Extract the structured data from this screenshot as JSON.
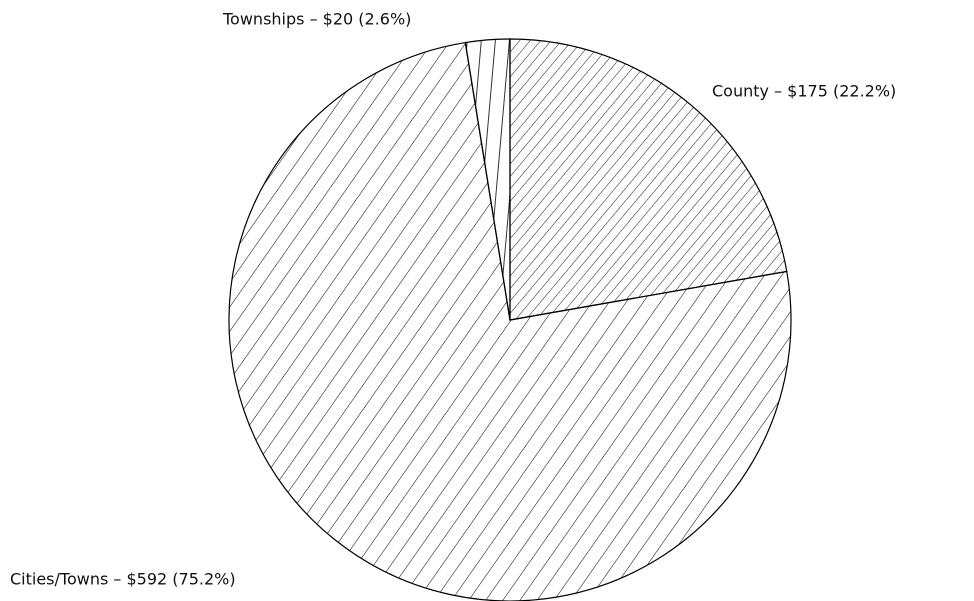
{
  "chart_data": {
    "type": "pie",
    "values": [
      175,
      592,
      20
    ],
    "value_labels": [
      "County – $175 (22.2%)",
      "Cities/Towns – $592 (75.2%)",
      "Townships – $20 (2.6%)"
    ],
    "color": "#000000"
  }
}
